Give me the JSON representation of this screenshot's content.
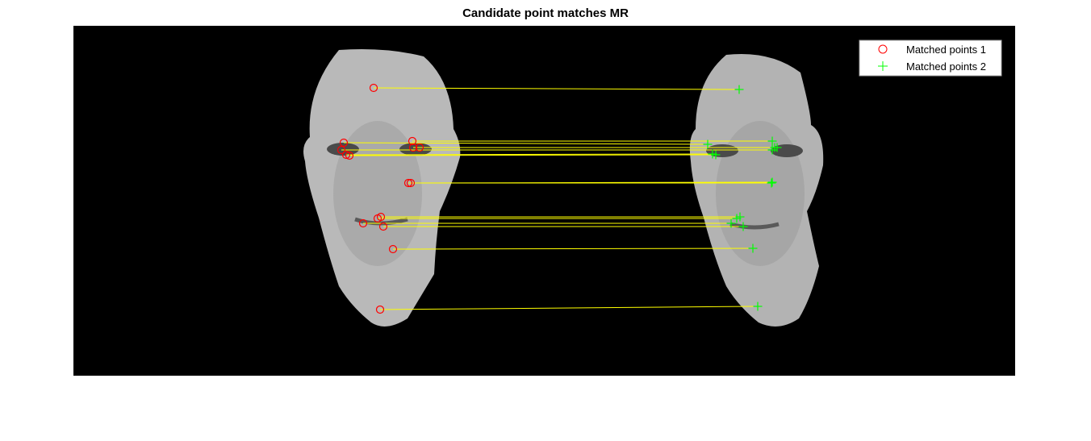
{
  "chart_data": {
    "type": "scatter",
    "title": "Candidate point matches MR",
    "xlim": [
      0,
      1167
    ],
    "ylim": [
      0,
      434
    ],
    "y_direction": "reversed",
    "grid": false,
    "background": "#000000",
    "legend": {
      "placement": "top-right"
    },
    "series": [
      {
        "name": "Matched points 1",
        "marker": "circle",
        "color": "#ff0000",
        "points": [
          [
            372,
            77
          ],
          [
            335,
            145
          ],
          [
            420,
            143
          ],
          [
            332,
            154
          ],
          [
            338,
            160
          ],
          [
            342,
            161
          ],
          [
            421,
            151
          ],
          [
            429,
            151
          ],
          [
            418,
            195
          ],
          [
            415,
            195
          ],
          [
            381,
            237
          ],
          [
            377,
            239
          ],
          [
            359,
            245
          ],
          [
            384,
            249
          ],
          [
            396,
            277
          ],
          [
            380,
            352
          ]
        ]
      },
      {
        "name": "Matched points 2",
        "marker": "plus",
        "color": "#00ff00",
        "points": [
          [
            825,
            79
          ],
          [
            786,
            147
          ],
          [
            866,
            143
          ],
          [
            866,
            154
          ],
          [
            792,
            159
          ],
          [
            796,
            160
          ],
          [
            872,
            151
          ],
          [
            869,
            151
          ],
          [
            865,
            195
          ],
          [
            866,
            194
          ],
          [
            826,
            237
          ],
          [
            822,
            239
          ],
          [
            815,
            245
          ],
          [
            830,
            249
          ],
          [
            842,
            276
          ],
          [
            848,
            348
          ]
        ]
      }
    ],
    "match_line_color": "#ffff00"
  }
}
